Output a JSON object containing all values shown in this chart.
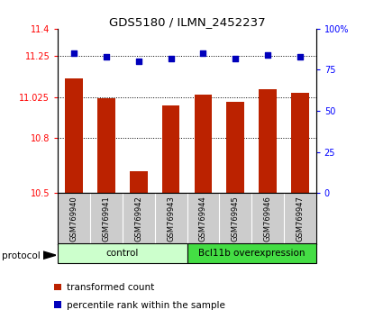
{
  "title": "GDS5180 / ILMN_2452237",
  "samples": [
    "GSM769940",
    "GSM769941",
    "GSM769942",
    "GSM769943",
    "GSM769944",
    "GSM769945",
    "GSM769946",
    "GSM769947"
  ],
  "bar_values": [
    11.13,
    11.02,
    10.62,
    10.98,
    11.04,
    11.0,
    11.07,
    11.05
  ],
  "percentile_values": [
    85,
    83,
    80,
    82,
    85,
    82,
    84,
    83
  ],
  "ylim_left": [
    10.5,
    11.4
  ],
  "ylim_right": [
    0,
    100
  ],
  "yticks_left": [
    10.5,
    10.8,
    11.025,
    11.25,
    11.4
  ],
  "ytick_labels_left": [
    "10.5",
    "10.8",
    "11.025",
    "11.25",
    "11.4"
  ],
  "yticks_right": [
    0,
    25,
    50,
    75,
    100
  ],
  "ytick_labels_right": [
    "0",
    "25",
    "50",
    "75",
    "100%"
  ],
  "groups": [
    {
      "label": "control",
      "start": 0,
      "end": 4,
      "color": "#ccffcc"
    },
    {
      "label": "Bcl11b overexpression",
      "start": 4,
      "end": 8,
      "color": "#44dd44"
    }
  ],
  "bar_color": "#bb2200",
  "dot_color": "#0000bb",
  "bg_color": "#ffffff",
  "sample_bg_color": "#cccccc",
  "legend_items": [
    {
      "label": "transformed count",
      "color": "#bb2200"
    },
    {
      "label": "percentile rank within the sample",
      "color": "#0000bb"
    }
  ],
  "protocol_label": "protocol"
}
